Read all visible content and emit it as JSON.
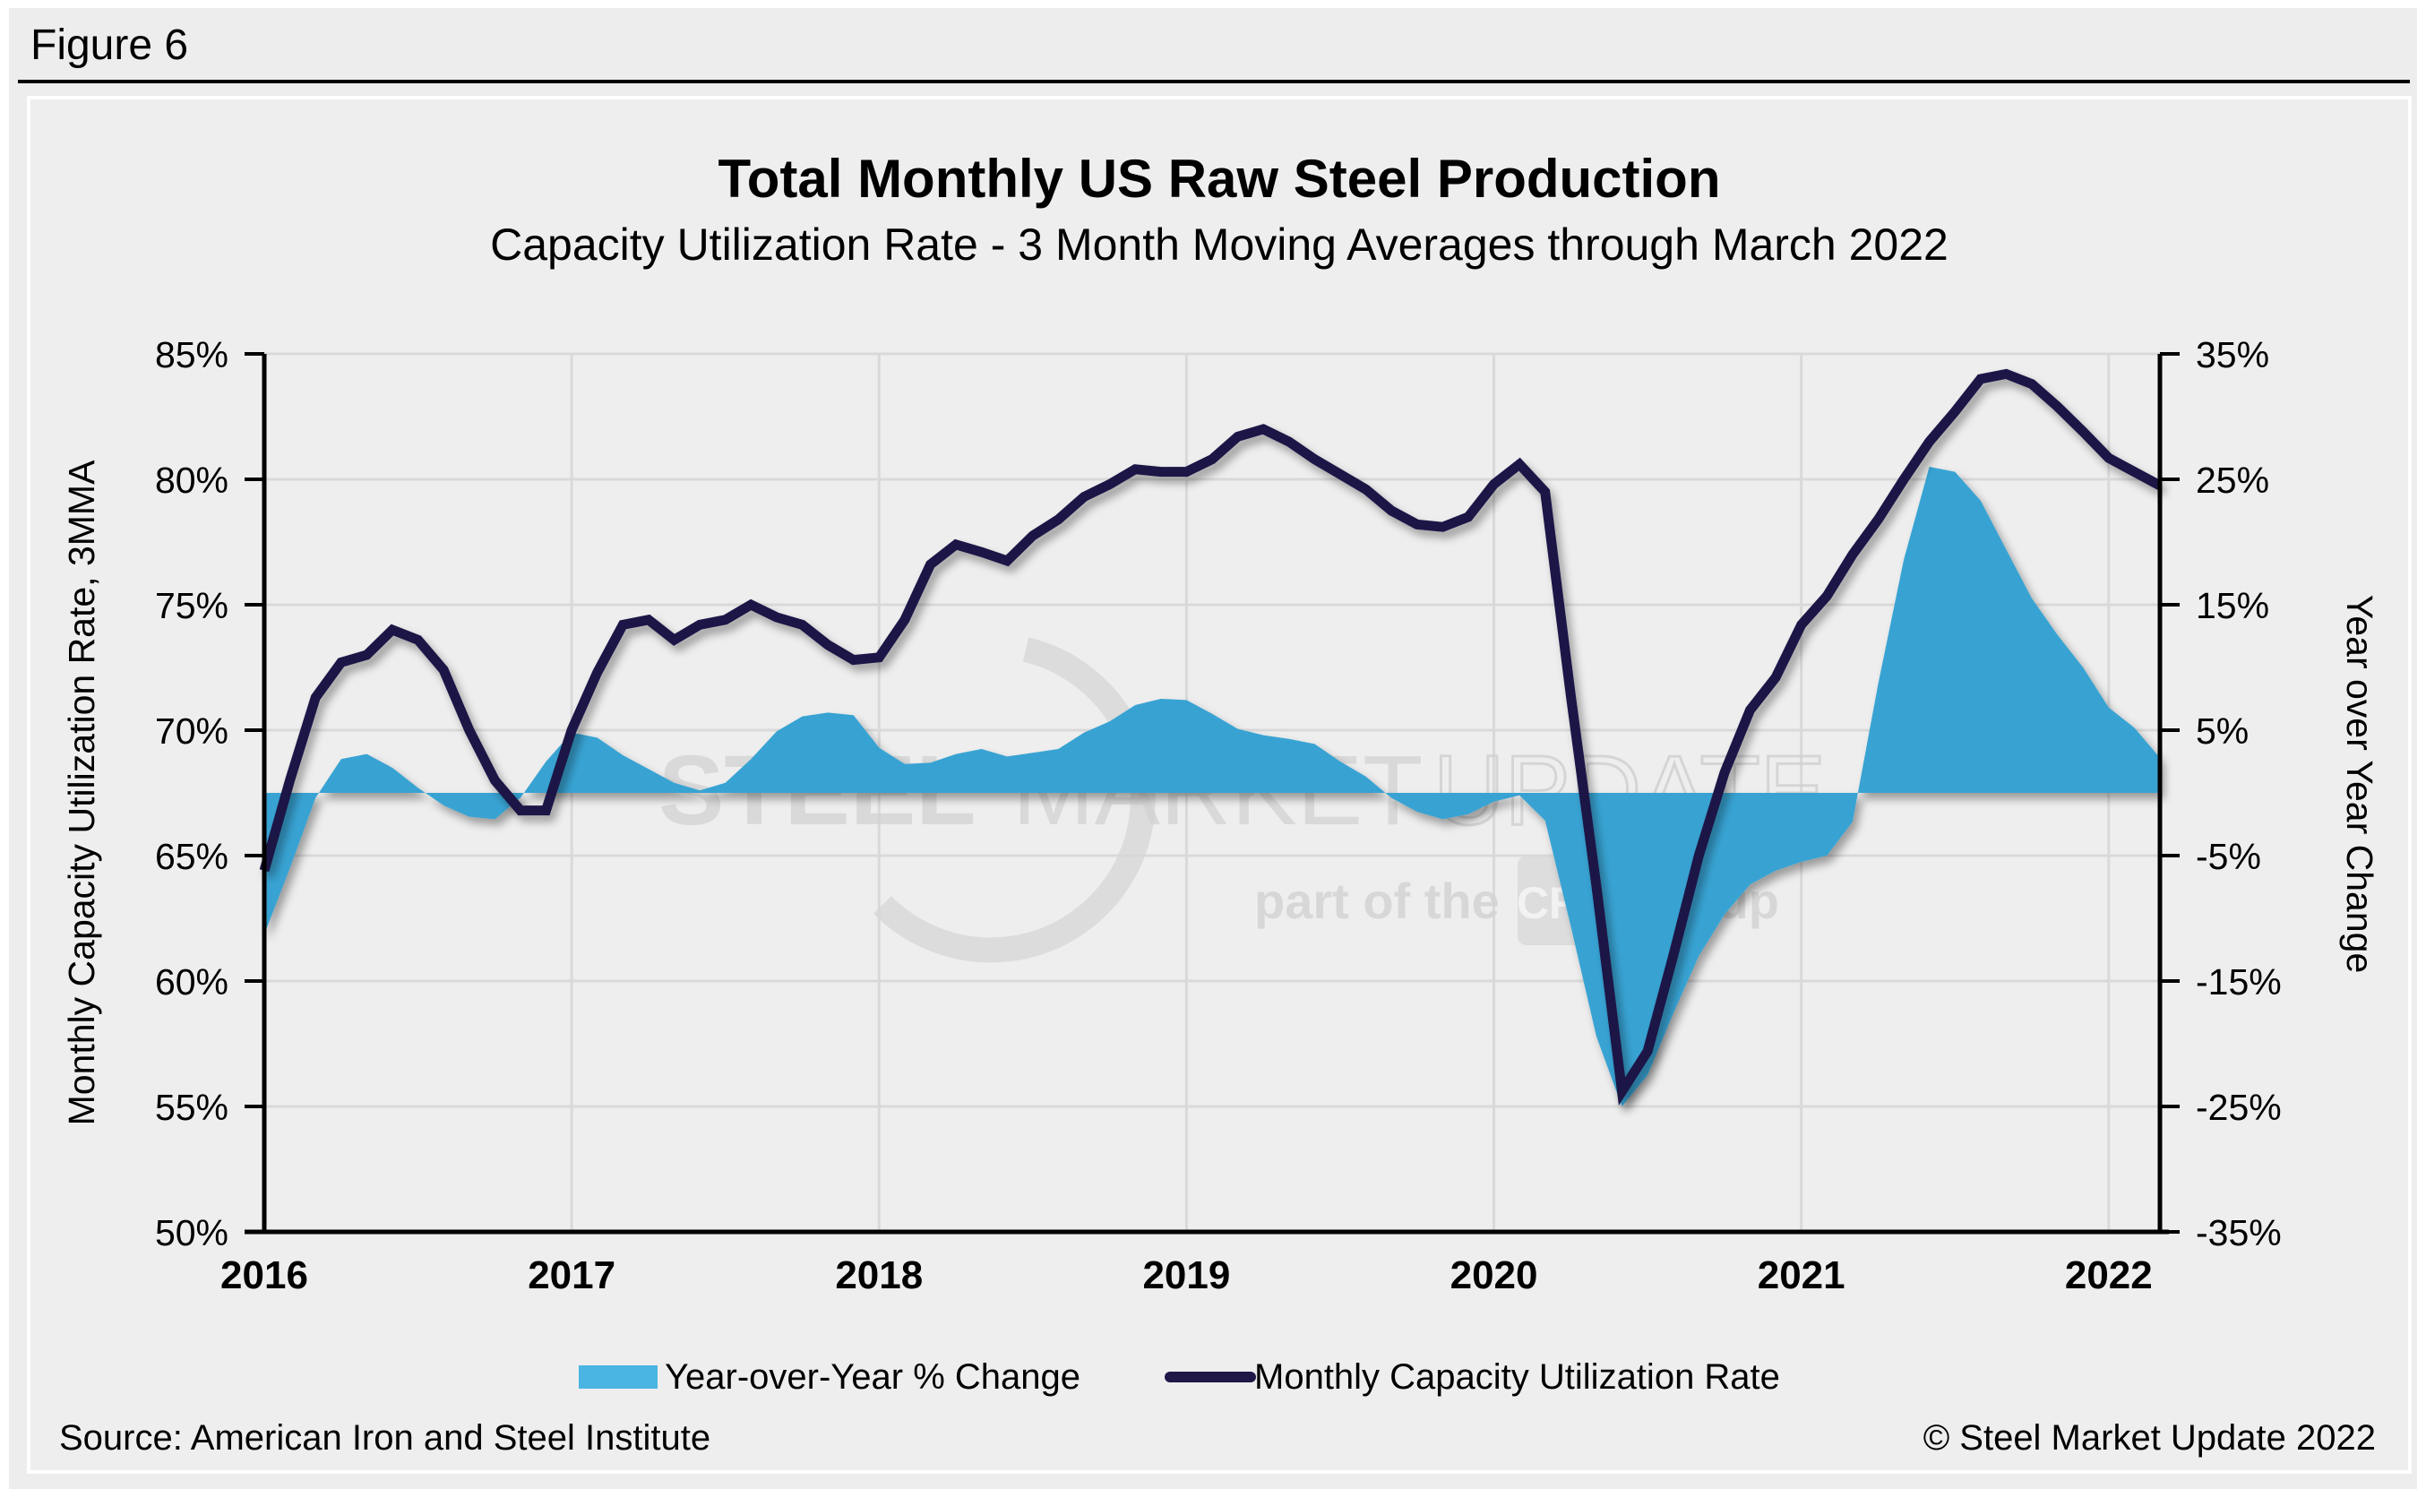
{
  "figure_label": "Figure 6",
  "colors": {
    "area": "#38a3d3",
    "area_legend": "#4ab4e2",
    "line": "#1f1746",
    "grid": "#d9d9d9",
    "axis": "#000000",
    "background": "#eeeeee"
  },
  "watermark": {
    "word1": "STEEL",
    "word2": "MARKET",
    "word3": "UPDATE",
    "tagline_pre": "part of the",
    "tagline_brand": "CRU",
    "tagline_post": "Group"
  },
  "legend": {
    "area_label": "Year-over-Year % Change",
    "line_label": "Monthly Capacity Utilization Rate"
  },
  "footer": {
    "source": "Source: American Iron and Steel Institute",
    "copyright": "© Steel Market Update 2022"
  },
  "chart_data": {
    "type": "line",
    "title": "Total Monthly US Raw Steel Production",
    "subtitle": "Capacity Utilization Rate - 3 Month Moving Averages through March 2022",
    "xlabel": "",
    "ylabel": "Monthly Capacity Utilization Rate, 3MMA",
    "y2label": "Year over Year Change",
    "x_start": "2016-01",
    "x_end": "2022-03",
    "x_ticks": [
      "2016",
      "2017",
      "2018",
      "2019",
      "2020",
      "2021",
      "2022"
    ],
    "ylim": [
      50,
      85
    ],
    "y_ticks": [
      "50%",
      "55%",
      "60%",
      "65%",
      "70%",
      "75%",
      "80%",
      "85%"
    ],
    "y_tick_values": [
      50,
      55,
      60,
      65,
      70,
      75,
      80,
      85
    ],
    "y2lim": [
      -35,
      35
    ],
    "y2_ticks": [
      "-35%",
      "-25%",
      "-15%",
      "-5%",
      "5%",
      "15%",
      "25%",
      "35%"
    ],
    "y2_tick_values": [
      -35,
      -25,
      -15,
      -5,
      5,
      15,
      25,
      35
    ],
    "grid": true,
    "legend_position": "bottom",
    "x": [
      "2016-01",
      "2016-02",
      "2016-03",
      "2016-04",
      "2016-05",
      "2016-06",
      "2016-07",
      "2016-08",
      "2016-09",
      "2016-10",
      "2016-11",
      "2016-12",
      "2017-01",
      "2017-02",
      "2017-03",
      "2017-04",
      "2017-05",
      "2017-06",
      "2017-07",
      "2017-08",
      "2017-09",
      "2017-10",
      "2017-11",
      "2017-12",
      "2018-01",
      "2018-02",
      "2018-03",
      "2018-04",
      "2018-05",
      "2018-06",
      "2018-07",
      "2018-08",
      "2018-09",
      "2018-10",
      "2018-11",
      "2018-12",
      "2019-01",
      "2019-02",
      "2019-03",
      "2019-04",
      "2019-05",
      "2019-06",
      "2019-07",
      "2019-08",
      "2019-09",
      "2019-10",
      "2019-11",
      "2019-12",
      "2020-01",
      "2020-02",
      "2020-03",
      "2020-04",
      "2020-05",
      "2020-06",
      "2020-07",
      "2020-08",
      "2020-09",
      "2020-10",
      "2020-11",
      "2020-12",
      "2021-01",
      "2021-02",
      "2021-03",
      "2021-04",
      "2021-05",
      "2021-06",
      "2021-07",
      "2021-08",
      "2021-09",
      "2021-10",
      "2021-11",
      "2021-12",
      "2022-01",
      "2022-02",
      "2022-03"
    ],
    "series": [
      {
        "name": "Year-over-Year % Change",
        "type": "area",
        "axis": "right",
        "values": [
          -11.3,
          -6.0,
          -0.4,
          2.7,
          3.1,
          2.0,
          0.4,
          -1.0,
          -1.9,
          -2.1,
          -0.4,
          2.5,
          4.8,
          4.4,
          3.0,
          1.9,
          0.8,
          0.2,
          0.8,
          2.7,
          4.9,
          6.1,
          6.4,
          6.2,
          3.6,
          2.3,
          2.4,
          3.1,
          3.5,
          2.9,
          3.2,
          3.5,
          4.8,
          5.7,
          7.0,
          7.5,
          7.4,
          6.3,
          5.1,
          4.6,
          4.3,
          3.9,
          2.5,
          1.3,
          -0.4,
          -1.5,
          -2.1,
          -1.7,
          -0.7,
          -0.2,
          -2.2,
          -10.6,
          -19.4,
          -25.0,
          -22.5,
          -17.6,
          -13.0,
          -9.7,
          -7.3,
          -6.2,
          -5.5,
          -5.0,
          -2.3,
          8.7,
          18.6,
          26.0,
          25.6,
          23.3,
          19.4,
          15.5,
          12.6,
          10.0,
          6.8,
          5.2,
          2.8
        ]
      },
      {
        "name": "Monthly Capacity Utilization Rate",
        "type": "line",
        "axis": "left",
        "values": [
          64.4,
          68.0,
          71.3,
          72.7,
          73.0,
          74.0,
          73.6,
          72.4,
          70.0,
          68.0,
          66.8,
          66.8,
          70.0,
          72.3,
          74.2,
          74.4,
          73.6,
          74.2,
          74.4,
          75.0,
          74.5,
          74.2,
          73.4,
          72.8,
          72.9,
          74.4,
          76.6,
          77.4,
          77.1,
          76.75,
          77.75,
          78.4,
          79.3,
          79.8,
          80.4,
          80.3,
          80.3,
          80.8,
          81.7,
          82.0,
          81.5,
          80.8,
          80.2,
          79.6,
          78.75,
          78.2,
          78.1,
          78.5,
          79.8,
          80.6,
          79.5,
          71.4,
          63.8,
          55.6,
          57.2,
          61.0,
          65.0,
          68.3,
          70.8,
          72.1,
          74.2,
          75.35,
          77.0,
          78.4,
          80.0,
          81.5,
          82.7,
          84.0,
          84.2,
          83.8,
          82.9,
          81.9,
          80.85,
          80.3,
          79.75
        ]
      }
    ]
  }
}
